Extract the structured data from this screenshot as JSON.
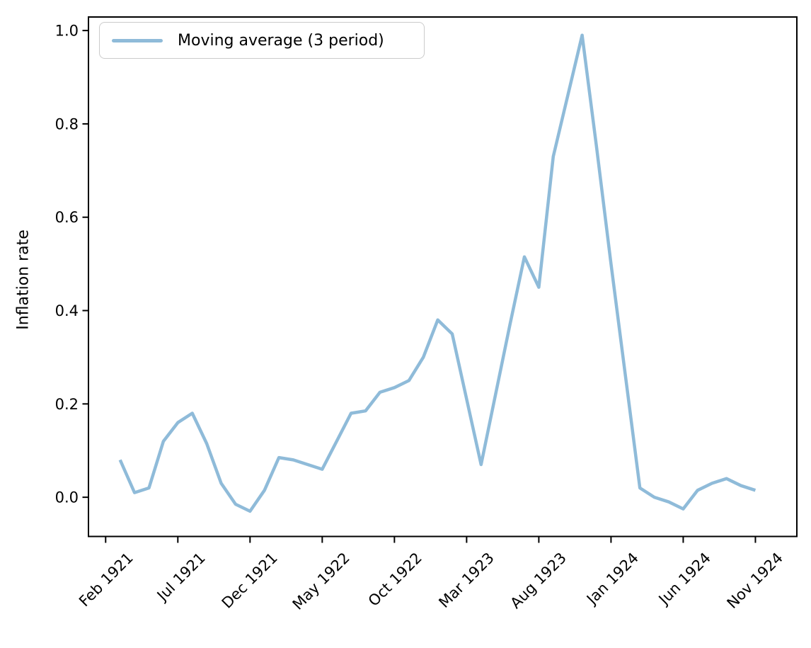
{
  "figure": {
    "background": "#ffffff"
  },
  "chart_data": {
    "type": "line",
    "title": "",
    "xlabel": "",
    "ylabel": "Inflation rate",
    "grid": false,
    "legend": {
      "position": "upper left",
      "entries": [
        "Moving average (3 period)"
      ]
    },
    "axis_color": "#000000",
    "tick_label_color": "#000000",
    "legend_border_color": "#cbcbcb",
    "xlim_months_from_feb1921": [
      -1.19,
      47.87
    ],
    "ylim": [
      -0.084,
      1.029
    ],
    "x_ticks": [
      {
        "label": "Feb 1921",
        "month_index": 0
      },
      {
        "label": "Jul 1921",
        "month_index": 5
      },
      {
        "label": "Dec 1921",
        "month_index": 10
      },
      {
        "label": "May 1922",
        "month_index": 15
      },
      {
        "label": "Oct 1922",
        "month_index": 20
      },
      {
        "label": "Mar 1923",
        "month_index": 25
      },
      {
        "label": "Aug 1923",
        "month_index": 30
      },
      {
        "label": "Jan 1924",
        "month_index": 35
      },
      {
        "label": "Jun 1924",
        "month_index": 40
      },
      {
        "label": "Nov 1924",
        "month_index": 45
      }
    ],
    "y_ticks": [
      {
        "label": "0.0",
        "value": 0.0
      },
      {
        "label": "0.2",
        "value": 0.2
      },
      {
        "label": "0.4",
        "value": 0.4
      },
      {
        "label": "0.6",
        "value": 0.6
      },
      {
        "label": "0.8",
        "value": 0.8
      },
      {
        "label": "1.0",
        "value": 1.0
      }
    ],
    "series": [
      {
        "name": "Moving average (3 period)",
        "color": "#8fbbd9",
        "line_width": 4.5,
        "first_month_offset": 1,
        "months": [
          "Mar 1921",
          "Apr 1921",
          "May 1921",
          "Jun 1921",
          "Jul 1921",
          "Aug 1921",
          "Sep 1921",
          "Oct 1921",
          "Nov 1921",
          "Dec 1921",
          "Jan 1922",
          "Feb 1922",
          "Mar 1922",
          "Apr 1922",
          "May 1922",
          "Jun 1922",
          "Jul 1922",
          "Aug 1922",
          "Sep 1922",
          "Oct 1922",
          "Nov 1922",
          "Dec 1922",
          "Jan 1923",
          "Feb 1923",
          "Mar 1923",
          "Apr 1923",
          "May 1923",
          "Jun 1923",
          "Jul 1923",
          "Aug 1923",
          "Sep 1923",
          "Oct 1923",
          "Nov 1923",
          "Dec 1923",
          "Jan 1924",
          "Feb 1924",
          "Mar 1924",
          "Apr 1924",
          "May 1924",
          "Jun 1924",
          "Jul 1924",
          "Aug 1924",
          "Sep 1924",
          "Oct 1924",
          "Nov 1924"
        ],
        "values": [
          0.08,
          0.01,
          0.02,
          0.12,
          0.16,
          0.18,
          0.115,
          0.03,
          -0.015,
          -0.03,
          0.015,
          0.085,
          0.08,
          0.07,
          0.06,
          0.12,
          0.18,
          0.185,
          0.225,
          0.235,
          0.25,
          0.3,
          0.38,
          0.35,
          0.21,
          0.07,
          0.22,
          0.37,
          0.515,
          0.45,
          0.73,
          0.86,
          0.99,
          0.75,
          0.5,
          0.26,
          0.02,
          0.0,
          -0.01,
          -0.025,
          0.015,
          0.03,
          0.04,
          0.025,
          0.015
        ]
      }
    ]
  }
}
